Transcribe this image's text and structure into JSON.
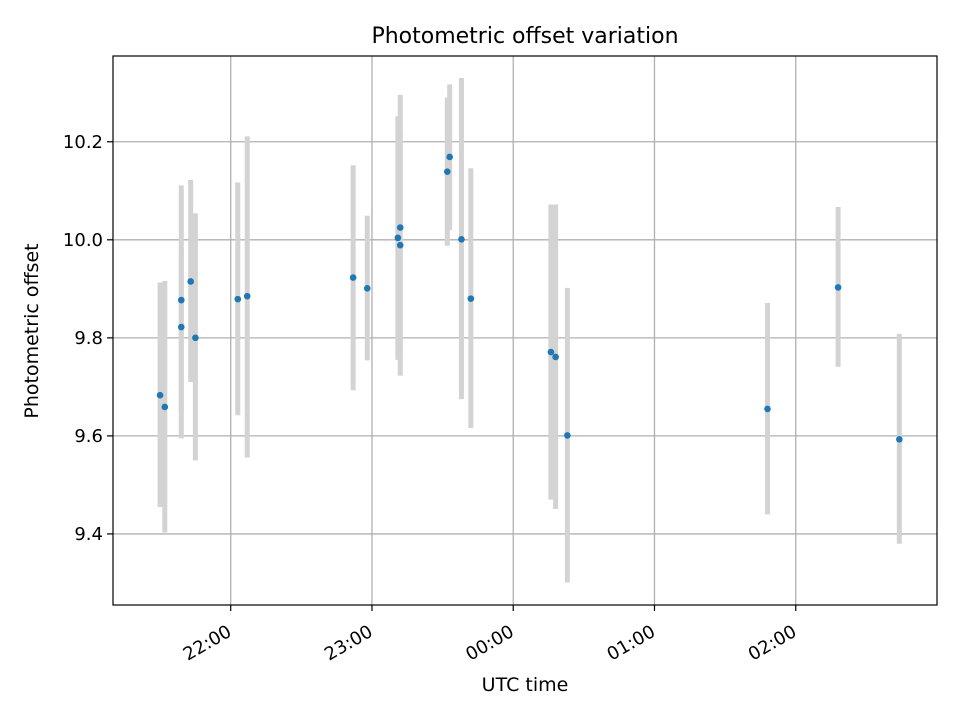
{
  "chart_data": {
    "type": "scatter",
    "title": "Photometric offset variation",
    "xlabel": "UTC time",
    "ylabel": "Photometric offset",
    "grid": true,
    "x_tick_labels": [
      "22:00",
      "23:00",
      "00:00",
      "01:00",
      "02:00"
    ],
    "x_ticks": [
      "22:00",
      "23:00",
      "00:00",
      "01:00",
      "02:00"
    ],
    "y_ticks": [
      9.4,
      9.6,
      9.8,
      10.0,
      10.2
    ],
    "y_tick_labels": [
      "9.4",
      "9.6",
      "9.8",
      "10.0",
      "10.2"
    ],
    "xlim": [
      "21:10",
      "03:00"
    ],
    "ylim": [
      9.255,
      10.375
    ],
    "colors": {
      "points": "#1f77b4",
      "errorbars": "#d3d3d3",
      "grid": "#b0b0b0"
    },
    "series": [
      {
        "points": [
          {
            "x": "21:30",
            "y": 9.683,
            "lo": 9.455,
            "hi": 9.913
          },
          {
            "x": "21:32",
            "y": 9.659,
            "lo": 9.403,
            "hi": 9.916
          },
          {
            "x": "21:39",
            "y": 9.822,
            "lo": 9.645,
            "hi": 9.982
          },
          {
            "x": "21:39",
            "y": 9.877,
            "lo": 9.595,
            "hi": 10.111
          },
          {
            "x": "21:43",
            "y": 9.915,
            "lo": 9.71,
            "hi": 10.122
          },
          {
            "x": "21:45",
            "y": 9.8,
            "lo": 9.55,
            "hi": 10.054
          },
          {
            "x": "22:03",
            "y": 9.879,
            "lo": 9.642,
            "hi": 10.117
          },
          {
            "x": "22:07",
            "y": 9.885,
            "lo": 9.556,
            "hi": 10.211
          },
          {
            "x": "22:52",
            "y": 9.923,
            "lo": 9.693,
            "hi": 10.152
          },
          {
            "x": "22:58",
            "y": 9.901,
            "lo": 9.754,
            "hi": 10.049
          },
          {
            "x": "23:11",
            "y": 10.004,
            "lo": 9.755,
            "hi": 10.252
          },
          {
            "x": "23:12",
            "y": 9.989,
            "lo": 9.758,
            "hi": 10.219
          },
          {
            "x": "23:12",
            "y": 10.025,
            "lo": 9.723,
            "hi": 10.296
          },
          {
            "x": "23:32",
            "y": 10.139,
            "lo": 9.988,
            "hi": 10.29
          },
          {
            "x": "23:33",
            "y": 10.169,
            "lo": 10.02,
            "hi": 10.317
          },
          {
            "x": "23:38",
            "y": 10.001,
            "lo": 9.675,
            "hi": 10.33
          },
          {
            "x": "23:42",
            "y": 9.88,
            "lo": 9.616,
            "hi": 10.146
          },
          {
            "x": "00:16",
            "y": 9.771,
            "lo": 9.47,
            "hi": 10.072
          },
          {
            "x": "00:18",
            "y": 9.761,
            "lo": 9.451,
            "hi": 10.072
          },
          {
            "x": "00:23",
            "y": 9.601,
            "lo": 9.301,
            "hi": 9.902
          },
          {
            "x": "01:48",
            "y": 9.655,
            "lo": 9.44,
            "hi": 9.871
          },
          {
            "x": "02:18",
            "y": 9.903,
            "lo": 9.741,
            "hi": 10.067
          },
          {
            "x": "02:44",
            "y": 9.593,
            "lo": 9.38,
            "hi": 9.808
          }
        ]
      }
    ]
  }
}
